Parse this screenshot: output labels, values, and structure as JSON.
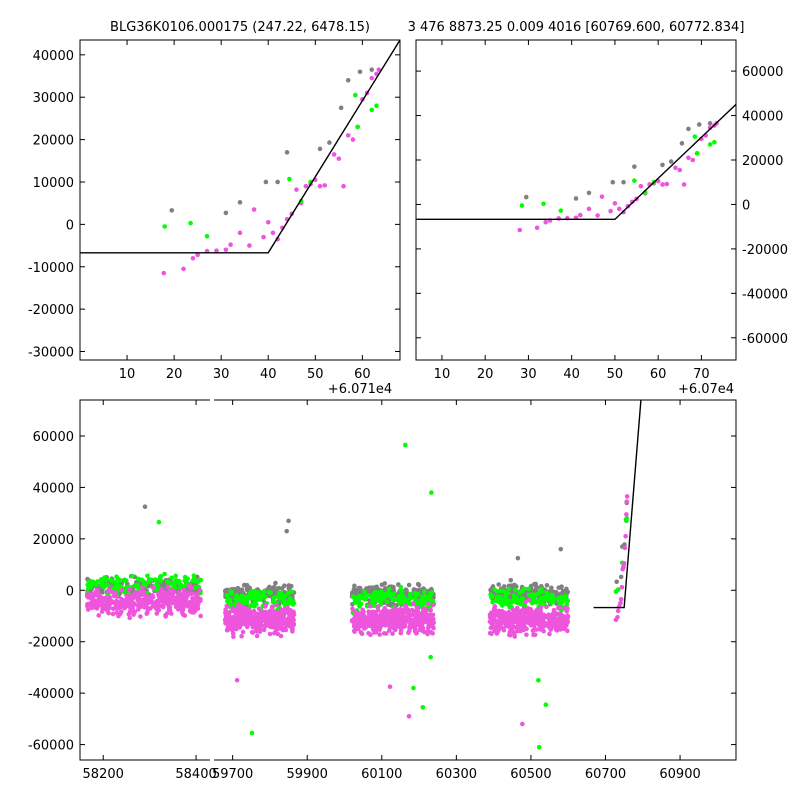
{
  "titles": {
    "left": "BLG36K0106.000175 (247.22, 6478.15)",
    "right": "3 476 8873.25 0.009 4016 [60769.600, 60772.834]"
  },
  "colors": {
    "magenta": "#ee55dd",
    "green": "#00ff00",
    "gray": "#808080",
    "model": "#000000"
  },
  "chart_data": [
    {
      "id": "zoom-left",
      "type": "scatter",
      "xlim": [
        0,
        68
      ],
      "ylim": [
        -32000,
        43500
      ],
      "x_offset_label": "+6.071e4",
      "xticks": [
        10,
        20,
        30,
        40,
        50,
        60
      ],
      "yticks": [
        -30000,
        -20000,
        -10000,
        0,
        10000,
        20000,
        30000,
        40000
      ],
      "model": [
        [
          0,
          -6700
        ],
        [
          40,
          -6700
        ],
        [
          68,
          43500
        ]
      ],
      "series": [
        {
          "color": "magenta",
          "points": [
            [
              17.8,
              -11500
            ],
            [
              22,
              -10500
            ],
            [
              24,
              -8000
            ],
            [
              25,
              -7200
            ],
            [
              27,
              -6300
            ],
            [
              29,
              -6200
            ],
            [
              31,
              -6000
            ],
            [
              32,
              -4800
            ],
            [
              34,
              -2000
            ],
            [
              36,
              -5000
            ],
            [
              37,
              3500
            ],
            [
              39,
              -3000
            ],
            [
              40,
              500
            ],
            [
              41,
              -2000
            ],
            [
              42,
              -3500
            ],
            [
              43,
              -800
            ],
            [
              44,
              1200
            ],
            [
              45,
              2500
            ],
            [
              46,
              8200
            ],
            [
              47,
              5000
            ],
            [
              48,
              9000
            ],
            [
              49,
              9500
            ],
            [
              50,
              10500
            ],
            [
              51,
              9000
            ],
            [
              52,
              9200
            ],
            [
              54,
              16500
            ],
            [
              55,
              15500
            ],
            [
              56,
              9000
            ],
            [
              57,
              21000
            ],
            [
              58,
              20000
            ],
            [
              59,
              23000
            ],
            [
              60,
              29500
            ],
            [
              61,
              31000
            ],
            [
              62,
              34500
            ],
            [
              63,
              35500
            ],
            [
              63.5,
              36500
            ]
          ]
        },
        {
          "color": "green",
          "points": [
            [
              18,
              -500
            ],
            [
              23.5,
              300
            ],
            [
              27,
              -2800
            ],
            [
              44.5,
              10700
            ],
            [
              47,
              5500
            ],
            [
              49,
              10000
            ],
            [
              58.5,
              30500
            ],
            [
              59,
              23000
            ],
            [
              62,
              27000
            ],
            [
              63,
              28000
            ]
          ]
        },
        {
          "color": "gray",
          "points": [
            [
              19.5,
              3300
            ],
            [
              31,
              2700
            ],
            [
              34,
              5200
            ],
            [
              39.5,
              10000
            ],
            [
              42,
              10000
            ],
            [
              44,
              17000
            ],
            [
              51,
              17800
            ],
            [
              53,
              19300
            ],
            [
              55.5,
              27500
            ],
            [
              57,
              34000
            ],
            [
              59.5,
              36000
            ],
            [
              62,
              36500
            ]
          ]
        }
      ]
    },
    {
      "id": "zoom-right",
      "type": "scatter",
      "xlim": [
        4,
        78
      ],
      "ylim": [
        -70000,
        74000
      ],
      "x_offset_label": "+6.07e4",
      "xticks": [
        10,
        20,
        30,
        40,
        50,
        60,
        70
      ],
      "yticks": [
        -60000,
        -40000,
        -20000,
        0,
        20000,
        40000,
        60000
      ],
      "model": [
        [
          4,
          -6700
        ],
        [
          50,
          -6700
        ],
        [
          78,
          45000
        ]
      ],
      "series": [
        {
          "color": "magenta",
          "points": [
            [
              28,
              -11500
            ],
            [
              32,
              -10500
            ],
            [
              34,
              -8000
            ],
            [
              35,
              -7200
            ],
            [
              37,
              -6300
            ],
            [
              39,
              -6200
            ],
            [
              41,
              -6000
            ],
            [
              42,
              -4800
            ],
            [
              44,
              -2000
            ],
            [
              46,
              -5000
            ],
            [
              47,
              3500
            ],
            [
              49,
              -3000
            ],
            [
              50,
              500
            ],
            [
              51,
              -2000
            ],
            [
              52,
              -3500
            ],
            [
              53,
              -800
            ],
            [
              54,
              1200
            ],
            [
              55,
              2500
            ],
            [
              56,
              8200
            ],
            [
              57,
              5000
            ],
            [
              58,
              9000
            ],
            [
              59,
              9500
            ],
            [
              60,
              10500
            ],
            [
              61,
              9000
            ],
            [
              62,
              9200
            ],
            [
              64,
              16500
            ],
            [
              65,
              15500
            ],
            [
              66,
              9000
            ],
            [
              67,
              21000
            ],
            [
              68,
              20000
            ],
            [
              69,
              23000
            ],
            [
              70,
              29500
            ],
            [
              71,
              31000
            ],
            [
              72,
              34500
            ],
            [
              73,
              35500
            ],
            [
              73.5,
              36500
            ]
          ]
        },
        {
          "color": "green",
          "points": [
            [
              28.5,
              -500
            ],
            [
              33.5,
              300
            ],
            [
              37.5,
              -2800
            ],
            [
              54.5,
              10700
            ],
            [
              57,
              5500
            ],
            [
              59,
              10000
            ],
            [
              68.5,
              30500
            ],
            [
              69,
              23000
            ],
            [
              72,
              27000
            ],
            [
              73,
              28000
            ]
          ]
        },
        {
          "color": "gray",
          "points": [
            [
              29.5,
              3300
            ],
            [
              41,
              2700
            ],
            [
              44,
              5200
            ],
            [
              49.5,
              10000
            ],
            [
              52,
              10000
            ],
            [
              54.5,
              17000
            ],
            [
              61,
              17800
            ],
            [
              63,
              19300
            ],
            [
              65.5,
              27500
            ],
            [
              67,
              34000
            ],
            [
              69.5,
              36000
            ],
            [
              72,
              36500
            ]
          ]
        }
      ]
    },
    {
      "id": "full",
      "type": "scatter",
      "ylim": [
        -66000,
        74000
      ],
      "yticks": [
        -60000,
        -40000,
        -20000,
        0,
        20000,
        40000,
        60000
      ],
      "segments": [
        {
          "xlim": [
            58150,
            58430
          ],
          "xticks": [
            58200,
            58400
          ]
        },
        {
          "xlim": [
            59650,
            61050
          ],
          "xticks": [
            59700,
            59900,
            60100,
            60300,
            60500,
            60700,
            60900
          ]
        }
      ],
      "seasons": [
        {
          "seg": 0,
          "x": [
            58165,
            58410
          ],
          "mean": {
            "magenta": -4500,
            "gray": 1000,
            "green": 2500
          }
        },
        {
          "seg": 1,
          "x": [
            59680,
            59865
          ],
          "mean": {
            "magenta": -11500,
            "gray": -1500,
            "green": -3500
          }
        },
        {
          "seg": 1,
          "x": [
            60020,
            60240
          ],
          "mean": {
            "magenta": -11500,
            "gray": -1500,
            "green": -3500
          }
        },
        {
          "seg": 1,
          "x": [
            60390,
            60600
          ],
          "mean": {
            "magenta": -11500,
            "gray": -1500,
            "green": -3500
          }
        }
      ],
      "outliers": [
        {
          "seg": 0,
          "color": "gray",
          "x": 58290,
          "y": 32500
        },
        {
          "seg": 0,
          "color": "green",
          "x": 58320,
          "y": 26500
        },
        {
          "seg": 1,
          "color": "gray",
          "x": 59850,
          "y": 27000
        },
        {
          "seg": 1,
          "color": "gray",
          "x": 59845,
          "y": 23000
        },
        {
          "seg": 1,
          "color": "green",
          "x": 59752,
          "y": -55500
        },
        {
          "seg": 1,
          "color": "magenta",
          "x": 59712,
          "y": -35000
        },
        {
          "seg": 1,
          "color": "green",
          "x": 60163,
          "y": 56500
        },
        {
          "seg": 1,
          "color": "green",
          "x": 60233,
          "y": 38000
        },
        {
          "seg": 1,
          "color": "green",
          "x": 60231,
          "y": -26000
        },
        {
          "seg": 1,
          "color": "green",
          "x": 60210,
          "y": -45500
        },
        {
          "seg": 1,
          "color": "magenta",
          "x": 60173,
          "y": -49000
        },
        {
          "seg": 1,
          "color": "green",
          "x": 60185,
          "y": -38000
        },
        {
          "seg": 1,
          "color": "magenta",
          "x": 60122,
          "y": -37500
        },
        {
          "seg": 1,
          "color": "magenta",
          "x": 60477,
          "y": -52000
        },
        {
          "seg": 1,
          "color": "green",
          "x": 60522,
          "y": -61000
        },
        {
          "seg": 1,
          "color": "green",
          "x": 60540,
          "y": -44500
        },
        {
          "seg": 1,
          "color": "green",
          "x": 60520,
          "y": -35000
        },
        {
          "seg": 1,
          "color": "gray",
          "x": 60580,
          "y": 16000
        },
        {
          "seg": 1,
          "color": "gray",
          "x": 60465,
          "y": 12500
        }
      ],
      "event": {
        "seg": 1,
        "points": {
          "magenta": [
            [
              60728,
              -11500
            ],
            [
              60732,
              -10500
            ],
            [
              60734,
              -8000
            ],
            [
              60737,
              -6300
            ],
            [
              60740,
              -5000
            ],
            [
              60742,
              -3500
            ],
            [
              60744,
              1200
            ],
            [
              60746,
              8200
            ],
            [
              60748,
              9000
            ],
            [
              60750,
              10500
            ],
            [
              60752,
              16500
            ],
            [
              60754,
              21000
            ],
            [
              60756,
              29500
            ],
            [
              60757,
              34500
            ],
            [
              60758,
              36500
            ]
          ],
          "green": [
            [
              60728,
              -500
            ],
            [
              60734,
              300
            ],
            [
              60745,
              10700
            ],
            [
              60749,
              10000
            ],
            [
              60756,
              27000
            ],
            [
              60757,
              28000
            ]
          ],
          "gray": [
            [
              60730,
              3300
            ],
            [
              60742,
              5200
            ],
            [
              60745,
              17000
            ],
            [
              60751,
              17800
            ],
            [
              60755,
              27500
            ],
            [
              60757,
              34000
            ]
          ]
        },
        "model": [
          [
            60668,
            -6700
          ],
          [
            60750,
            -6700
          ],
          [
            60795,
            74000
          ]
        ]
      }
    }
  ]
}
